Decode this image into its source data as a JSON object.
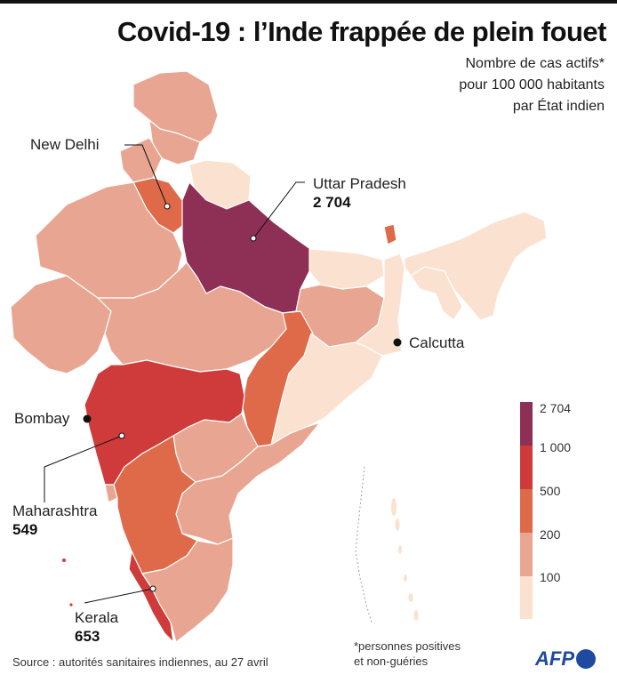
{
  "title": "Covid-19 : l’Inde frappée de plein fouet",
  "subtitle": {
    "line1": "Nombre de cas actifs*",
    "line2": "pour 100 000 habitants",
    "line3": "par État indien"
  },
  "places": {
    "new_delhi": "New Delhi",
    "uttar_pradesh": "Uttar Pradesh",
    "uttar_pradesh_value": "2 704",
    "calcutta": "Calcutta",
    "bombay": "Bombay",
    "maharashtra": "Maharashtra",
    "maharashtra_value": "549",
    "kerala": "Kerala",
    "kerala_value": "653"
  },
  "legend": {
    "ticks": [
      "2 704",
      "1 000",
      "500",
      "200",
      "100"
    ],
    "colors": [
      "#8e2f55",
      "#cf3b3b",
      "#de6a4a",
      "#e8a591",
      "#fbe1cf"
    ]
  },
  "footer": {
    "source": "Source : autorités sanitaires indiennes, au 27 avril",
    "note_line1": "*personnes positives",
    "note_line2": "et non-guéries"
  },
  "brand": {
    "name": "AFP",
    "color": "#1e4aa0"
  },
  "colors": {
    "very_high": "#8e2f55",
    "high": "#cf3b3b",
    "mid": "#de6a4a",
    "low": "#e8a591",
    "very_low": "#fbe1cf"
  }
}
